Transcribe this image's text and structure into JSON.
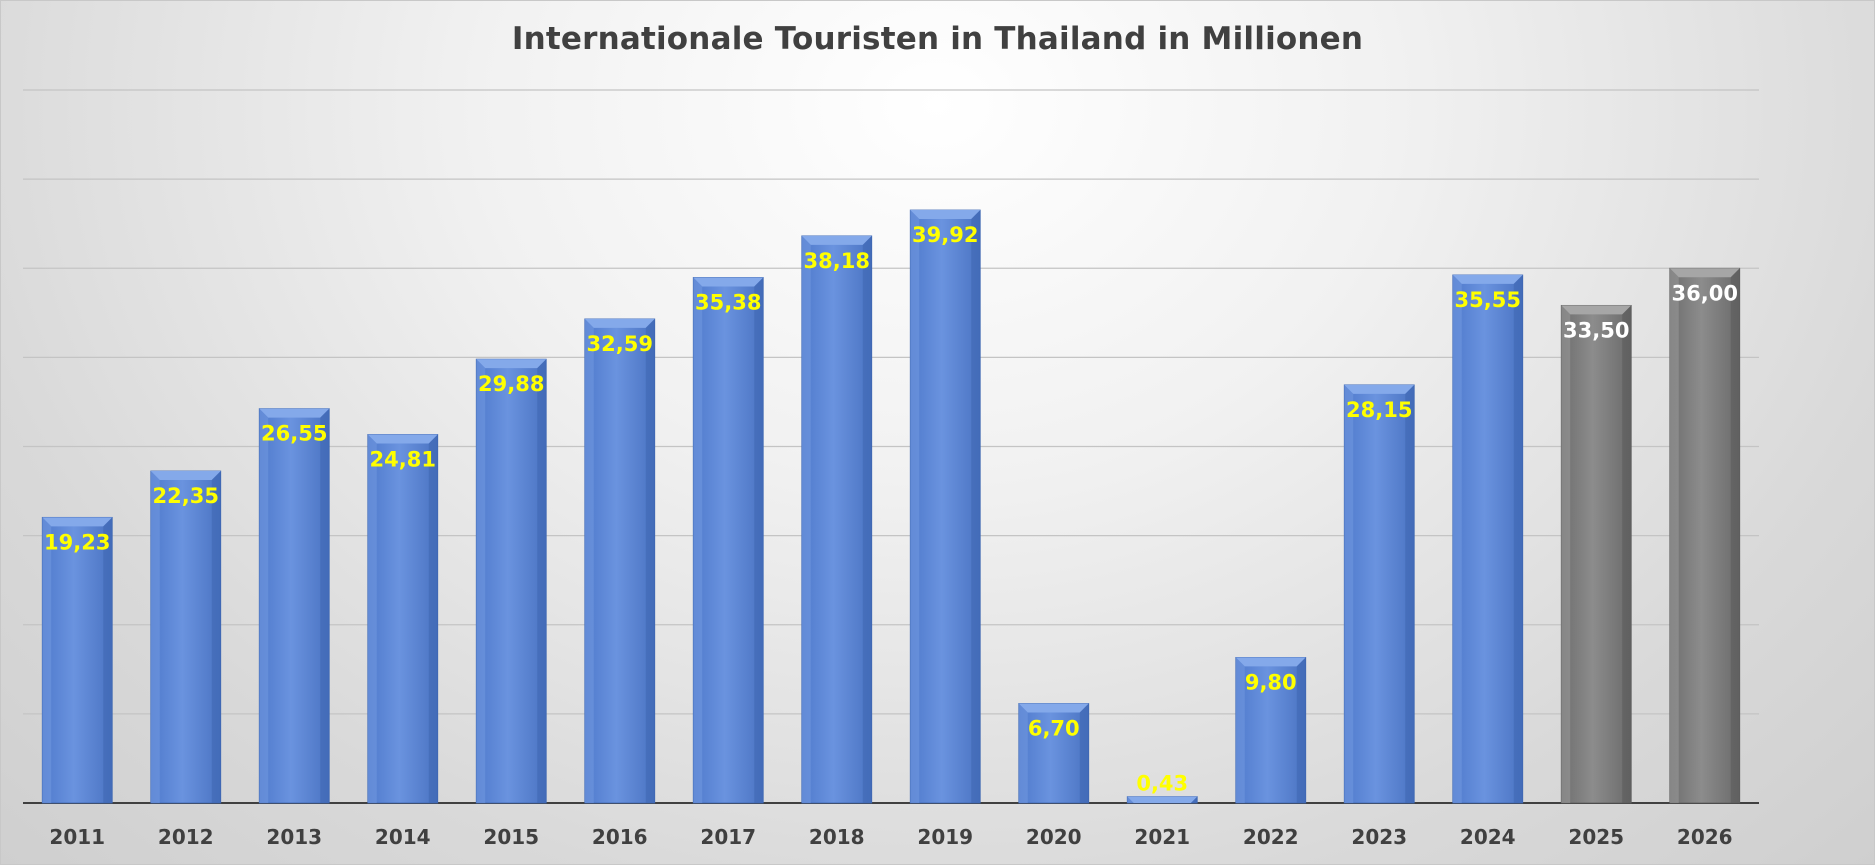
{
  "chart_data": {
    "type": "bar",
    "title": "Internationale Touristen in Thailand in Millionen",
    "xlabel": "",
    "ylabel": "",
    "ylim": [
      0,
      48
    ],
    "grid": true,
    "legend": "none",
    "categories": [
      "2011",
      "2012",
      "2013",
      "2014",
      "2015",
      "2016",
      "2017",
      "2018",
      "2019",
      "2020",
      "2021",
      "2022",
      "2023",
      "2024",
      "2025",
      "2026"
    ],
    "values": [
      19.23,
      22.35,
      26.55,
      24.81,
      29.88,
      32.59,
      35.38,
      38.18,
      39.92,
      6.7,
      0.43,
      9.8,
      28.15,
      35.55,
      33.5,
      36.0
    ],
    "labels": [
      "19,23",
      "22,35",
      "26,55",
      "24,81",
      "29,88",
      "32,59",
      "35,38",
      "38,18",
      "39,92",
      "6,70",
      "0,43",
      "9,80",
      "28,15",
      "35,55",
      "33,50",
      "36,00"
    ],
    "forecast": [
      false,
      false,
      false,
      false,
      false,
      false,
      false,
      false,
      false,
      false,
      false,
      false,
      false,
      false,
      true,
      true
    ],
    "colors": {
      "actual": "#5b87d6",
      "actual_light": "#84a9ea",
      "forecast": "#7f7f7f",
      "forecast_light": "#a6a6a6",
      "actual_label": "#ffff00",
      "forecast_label": "#ffffff",
      "grid": "#c4c4c4",
      "axis": "#404040"
    }
  }
}
